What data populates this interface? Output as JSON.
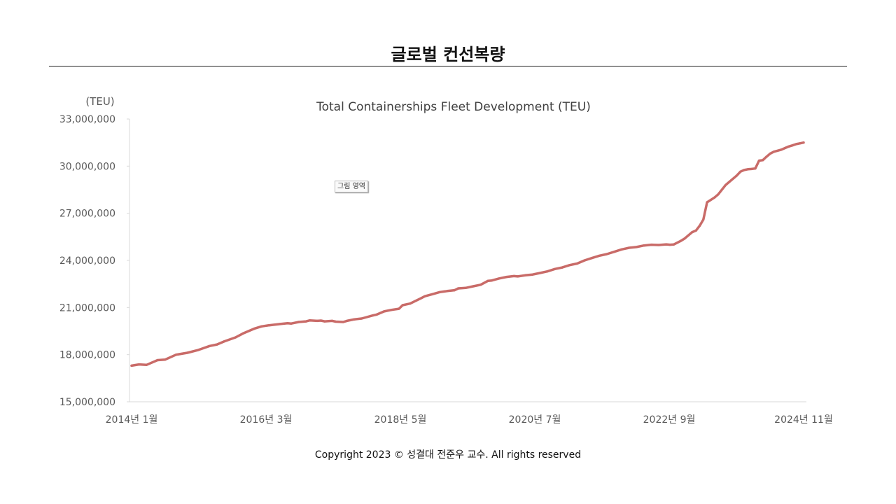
{
  "slide": {
    "title": "글로벌 컨선복량",
    "plot_area_tooltip": "그림 영역",
    "copyright": "Copyright 2023 © 성결대 전준우 교수. All rights reserved"
  },
  "colors": {
    "series": "#c96b68",
    "axis": "#d9d9d9",
    "text": "#595959",
    "title": "#404040"
  },
  "chart_data": {
    "type": "line",
    "title": "Total Containerships Fleet Development (TEU)",
    "ylabel": "(TEU)",
    "xlabel": "",
    "ylim": [
      15000000,
      33000000
    ],
    "y_ticks": [
      15000000,
      18000000,
      21000000,
      24000000,
      27000000,
      30000000,
      33000000
    ],
    "y_tick_labels": [
      "15,000,000",
      "18,000,000",
      "21,000,000",
      "24,000,000",
      "27,000,000",
      "30,000,000",
      "33,000,000"
    ],
    "x_tick_labels": [
      "2014년 1월",
      "2016년 3월",
      "2018년 5월",
      "2020년 7월",
      "2022년 9월",
      "2024년 11월"
    ],
    "x_tick_index": [
      0,
      26,
      52,
      78,
      104,
      130
    ],
    "x_count": 131,
    "grid": false,
    "legend": "none",
    "series": [
      {
        "name": "Total Containerships Fleet Development (TEU)",
        "anchors": [
          [
            0,
            17300000
          ],
          [
            2,
            17380000
          ],
          [
            4,
            17350000
          ],
          [
            7,
            17650000
          ],
          [
            9,
            17680000
          ],
          [
            12,
            18000000
          ],
          [
            15,
            18120000
          ],
          [
            18,
            18300000
          ],
          [
            21,
            18550000
          ],
          [
            23,
            18650000
          ],
          [
            25,
            18850000
          ],
          [
            28,
            19100000
          ],
          [
            30,
            19350000
          ],
          [
            33,
            19650000
          ],
          [
            35,
            19800000
          ],
          [
            37,
            19870000
          ],
          [
            40,
            19950000
          ],
          [
            42,
            20000000
          ],
          [
            43,
            19980000
          ],
          [
            45,
            20080000
          ],
          [
            47,
            20120000
          ],
          [
            48,
            20180000
          ],
          [
            50,
            20150000
          ],
          [
            51,
            20170000
          ],
          [
            52,
            20120000
          ],
          [
            54,
            20150000
          ],
          [
            55,
            20100000
          ],
          [
            57,
            20080000
          ],
          [
            58,
            20150000
          ],
          [
            60,
            20250000
          ],
          [
            62,
            20300000
          ],
          [
            65,
            20500000
          ],
          [
            66,
            20550000
          ],
          [
            68,
            20750000
          ],
          [
            70,
            20850000
          ],
          [
            72,
            20920000
          ],
          [
            73,
            21150000
          ],
          [
            75,
            21250000
          ],
          [
            78,
            21600000
          ],
          [
            79,
            21720000
          ],
          [
            81,
            21850000
          ],
          [
            83,
            21980000
          ],
          [
            85,
            22050000
          ],
          [
            87,
            22100000
          ],
          [
            88,
            22220000
          ],
          [
            90,
            22250000
          ],
          [
            92,
            22350000
          ],
          [
            94,
            22450000
          ],
          [
            96,
            22700000
          ],
          [
            97,
            22720000
          ],
          [
            99,
            22850000
          ],
          [
            101,
            22950000
          ],
          [
            103,
            23000000
          ],
          [
            104,
            22980000
          ],
          [
            106,
            23050000
          ],
          [
            108,
            23100000
          ],
          [
            110,
            23200000
          ],
          [
            112,
            23300000
          ],
          [
            114,
            23450000
          ],
          [
            116,
            23550000
          ],
          [
            118,
            23700000
          ],
          [
            120,
            23800000
          ],
          [
            122,
            24000000
          ],
          [
            124,
            24150000
          ],
          [
            126,
            24300000
          ],
          [
            128,
            24400000
          ],
          [
            130,
            24550000
          ],
          [
            132,
            24700000
          ],
          [
            134,
            24800000
          ],
          [
            136,
            24850000
          ],
          [
            138,
            24950000
          ],
          [
            140,
            25000000
          ],
          [
            142,
            24980000
          ],
          [
            144,
            25020000
          ],
          [
            145,
            25000000
          ],
          [
            146,
            25010000
          ],
          [
            148,
            25250000
          ],
          [
            149,
            25400000
          ],
          [
            151,
            25800000
          ],
          [
            152,
            25900000
          ],
          [
            153,
            26200000
          ],
          [
            154,
            26600000
          ],
          [
            155,
            27700000
          ],
          [
            157,
            28000000
          ],
          [
            158,
            28200000
          ],
          [
            160,
            28800000
          ],
          [
            162,
            29200000
          ],
          [
            163,
            29400000
          ],
          [
            164,
            29650000
          ],
          [
            165,
            29750000
          ],
          [
            166,
            29800000
          ],
          [
            167,
            29820000
          ],
          [
            168,
            29850000
          ],
          [
            169,
            30350000
          ],
          [
            170,
            30380000
          ],
          [
            171,
            30600000
          ],
          [
            172,
            30800000
          ],
          [
            173,
            30920000
          ],
          [
            174,
            30980000
          ],
          [
            175,
            31050000
          ],
          [
            176,
            31150000
          ],
          [
            177,
            31250000
          ],
          [
            178,
            31320000
          ],
          [
            179,
            31400000
          ],
          [
            180,
            31450000
          ],
          [
            181,
            31500000
          ]
        ],
        "anchor_scale": 181
      }
    ]
  }
}
